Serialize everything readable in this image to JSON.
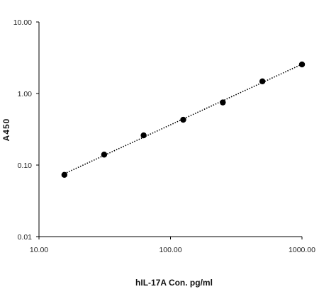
{
  "chart_data": {
    "type": "scatter",
    "xlabel": "hIL-17A Con. pg/ml",
    "ylabel": "A450",
    "x_scale": "log",
    "y_scale": "log",
    "xlim": [
      10,
      1000
    ],
    "ylim": [
      0.01,
      10
    ],
    "x_ticks": [
      {
        "value": 10,
        "label": "10.00"
      },
      {
        "value": 100,
        "label": "100.00"
      },
      {
        "value": 1000,
        "label": "1000.00"
      }
    ],
    "y_ticks": [
      {
        "value": 0.01,
        "label": "0.01"
      },
      {
        "value": 0.1,
        "label": "0.10"
      },
      {
        "value": 1,
        "label": "1.00"
      },
      {
        "value": 10,
        "label": "10.00"
      }
    ],
    "grid": false,
    "legend": false,
    "trendline": "dotted",
    "series": [
      {
        "x": [
          15.6,
          31.3,
          62.5,
          125,
          250,
          500,
          1000
        ],
        "y": [
          0.073,
          0.14,
          0.26,
          0.43,
          0.75,
          1.48,
          2.55
        ]
      }
    ],
    "colors": {
      "marker": "#000000",
      "line": "#000000",
      "axis": "#000000"
    }
  }
}
